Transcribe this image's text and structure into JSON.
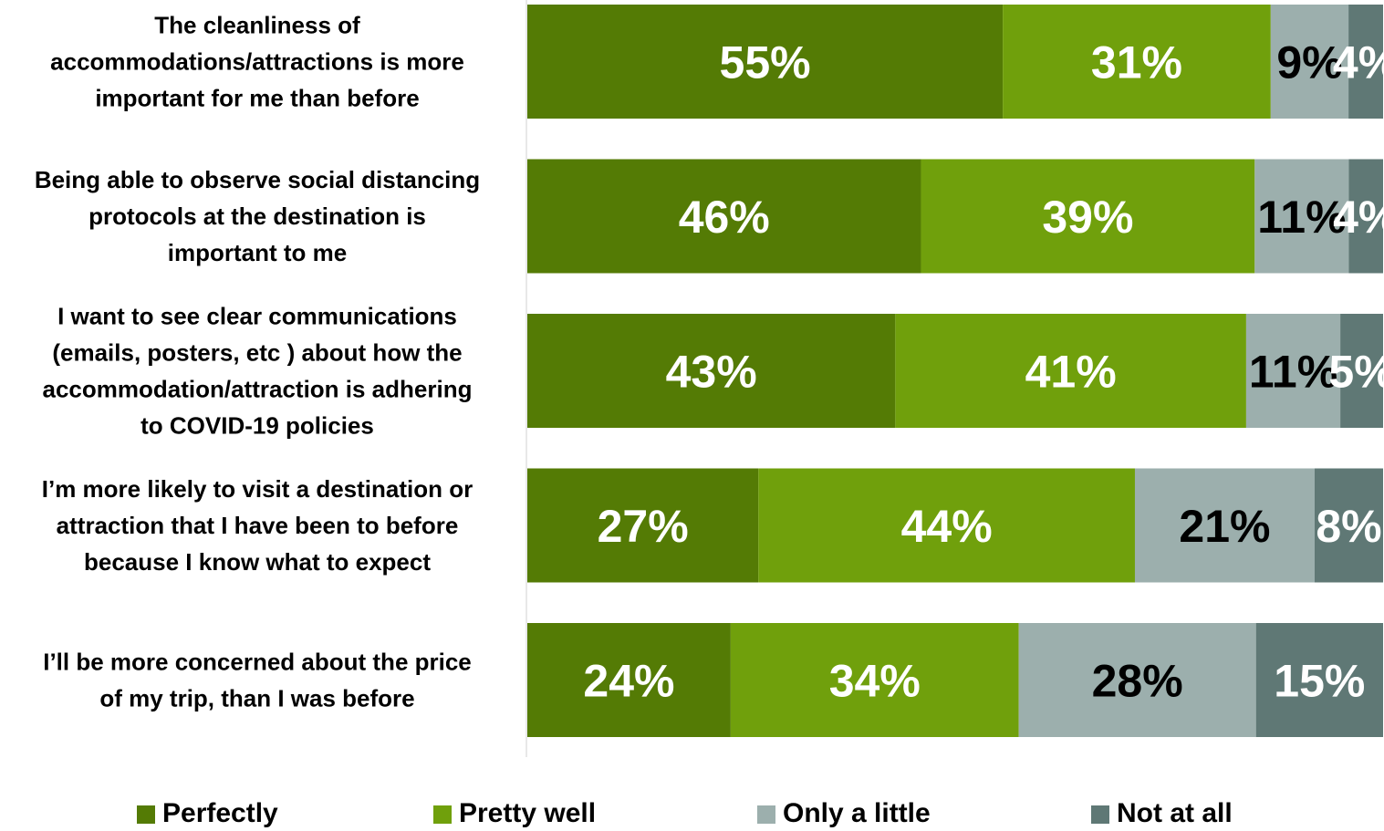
{
  "chart_data": {
    "type": "bar",
    "orientation": "horizontal",
    "stacked": true,
    "categories": [
      "The cleanliness of accommodations/attractions is more important for me than before",
      "Being able to observe social distancing protocols at the destination is important to me",
      "I want to see clear communications (emails, posters, etc ) about how the accommodation/attraction is adhering to COVID-19 policies",
      "I’m more likely to visit a destination or attraction that I have been to before because I know what to expect",
      "I’ll be more concerned about the price of my trip, than I was before"
    ],
    "category_lines": [
      [
        "The cleanliness of",
        "accommodations/attractions is more",
        "important for me than before"
      ],
      [
        "Being able to observe social distancing",
        "protocols at the destination is",
        "important to me"
      ],
      [
        "I want to see clear communications",
        "(emails, posters, etc ) about how the",
        "accommodation/attraction is adhering",
        "to COVID-19 policies"
      ],
      [
        "I’m more likely to visit a destination or",
        "attraction that I have been to before",
        "because I know what to expect"
      ],
      [
        "I’ll be more concerned about the price",
        "of my trip, than I was before"
      ]
    ],
    "series": [
      {
        "name": "Perfectly",
        "color": "#547b05",
        "label_color": "#ffffff",
        "values": [
          55,
          46,
          43,
          27,
          24
        ]
      },
      {
        "name": "Pretty well",
        "color": "#70a00c",
        "label_color": "#ffffff",
        "values": [
          31,
          39,
          41,
          44,
          34
        ]
      },
      {
        "name": "Only a little",
        "color": "#9cafad",
        "label_color": "#000000",
        "values": [
          9,
          11,
          11,
          21,
          28
        ]
      },
      {
        "name": "Not at all",
        "color": "#5f7875",
        "label_color": "#ffffff",
        "values": [
          4,
          4,
          5,
          8,
          15
        ]
      }
    ],
    "value_suffix": "%",
    "xlim": [
      0,
      100
    ],
    "grid": false,
    "legend_position": "bottom"
  }
}
